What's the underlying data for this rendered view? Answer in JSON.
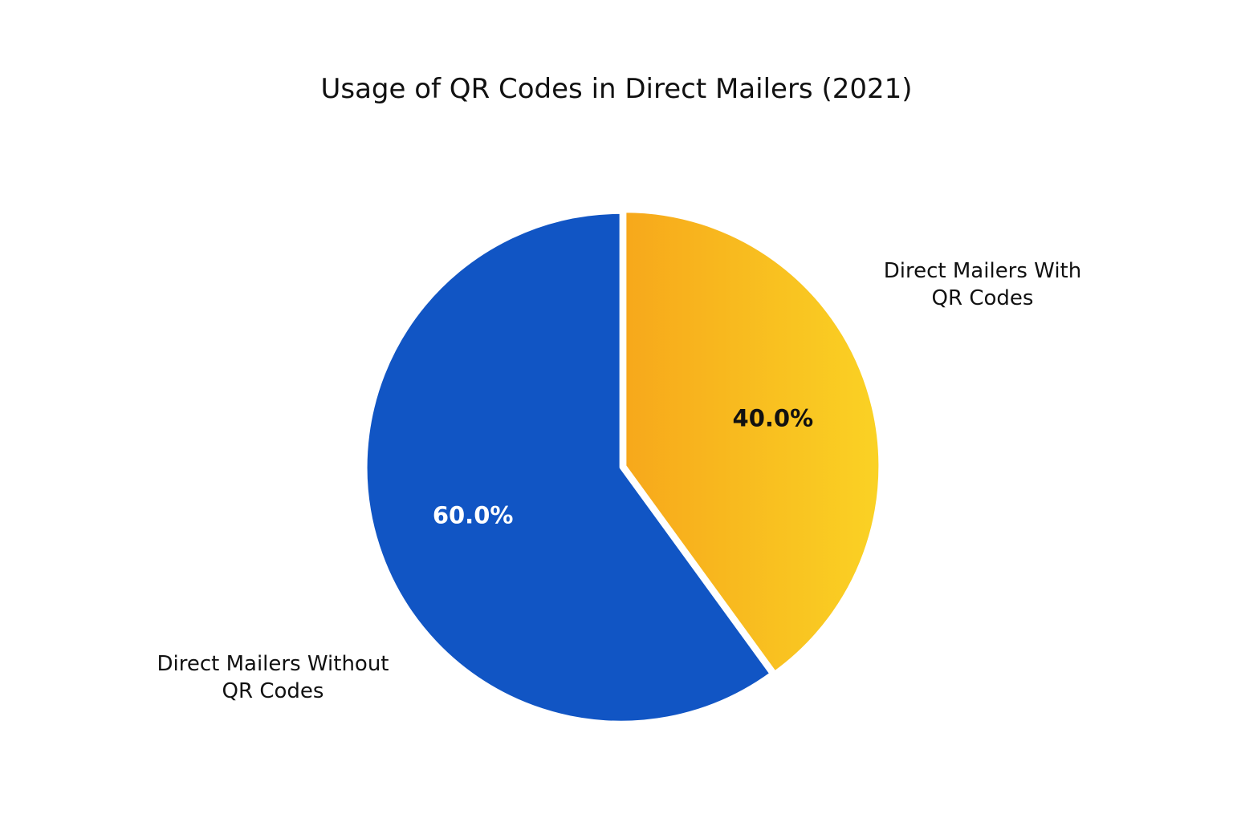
{
  "chart_data": {
    "type": "pie",
    "title": "Usage of QR Codes in Direct Mailers (2021)",
    "slices": [
      {
        "label_lines": [
          "Direct Mailers With",
          "QR Codes"
        ],
        "value": 40.0,
        "value_label": "40.0%",
        "color_start": "#f7a81b",
        "color_end": "#fad224",
        "label_color": "#111111"
      },
      {
        "label_lines": [
          "Direct Mailers Without",
          "QR Codes"
        ],
        "value": 60.0,
        "value_label": "60.0%",
        "color": "#1155c4",
        "label_color": "#ffffff"
      }
    ],
    "start_angle": "12 o'clock",
    "direction": "clockwise",
    "legend": "none"
  }
}
